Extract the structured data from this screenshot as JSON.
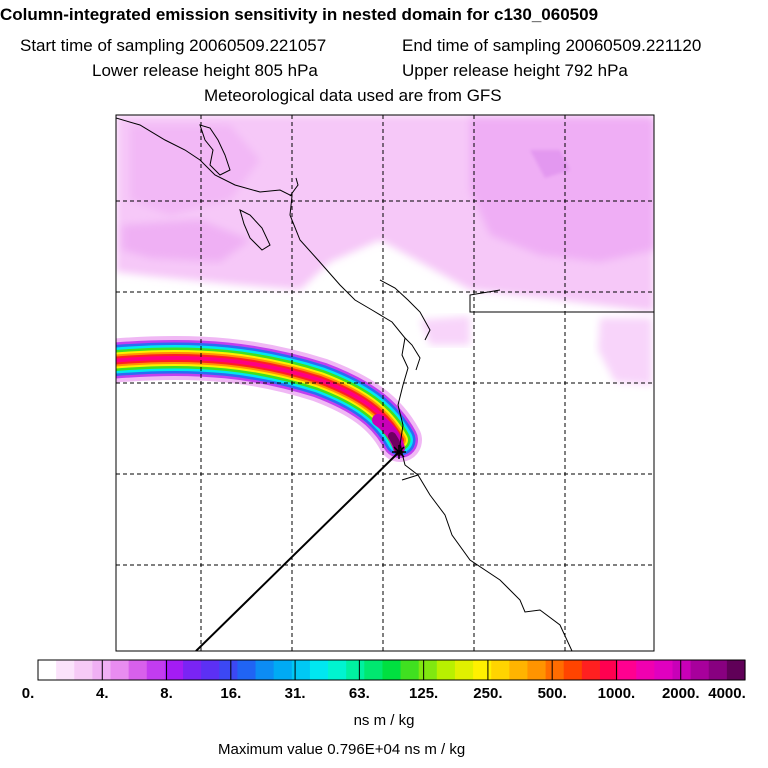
{
  "header": {
    "title": "Column-integrated emission sensitivity in nested domain for c130_060509",
    "start": "Start time of sampling 20060509.221057",
    "end": "End time of sampling 20060509.221120",
    "lower": "Lower release height  805 hPa",
    "upper": "Upper release height  792 hPa",
    "met": "Meteorological data used are from GFS"
  },
  "legend": {
    "ticks": [
      "0.",
      "4.",
      "8.",
      "16.",
      "31.",
      "63.",
      "125.",
      "250.",
      "500.",
      "1000.",
      "2000.",
      "4000."
    ],
    "colors": [
      "#ffffff",
      "#fbe3fb",
      "#f6caf6",
      "#f0b0f4",
      "#e88cf0",
      "#d860ec",
      "#c23cf0",
      "#a41cf4",
      "#7a24f4",
      "#5c30f4",
      "#3c48f4",
      "#2064f4",
      "#0c8cf4",
      "#00aaf4",
      "#00c8f4",
      "#00e8f0",
      "#00f4d0",
      "#00f0a0",
      "#00e870",
      "#00e040",
      "#40e020",
      "#80e810",
      "#b8f000",
      "#e0f000",
      "#fff000",
      "#ffd400",
      "#ffb400",
      "#ff9400",
      "#ff6c00",
      "#ff4400",
      "#ff2020",
      "#ff0050",
      "#ff0090",
      "#f000b0",
      "#e000c0",
      "#c800b8",
      "#a8009c",
      "#880080",
      "#600058"
    ],
    "units": "ns m / kg",
    "max": "Maximum value  0.796E+04 ns m / kg"
  }
}
